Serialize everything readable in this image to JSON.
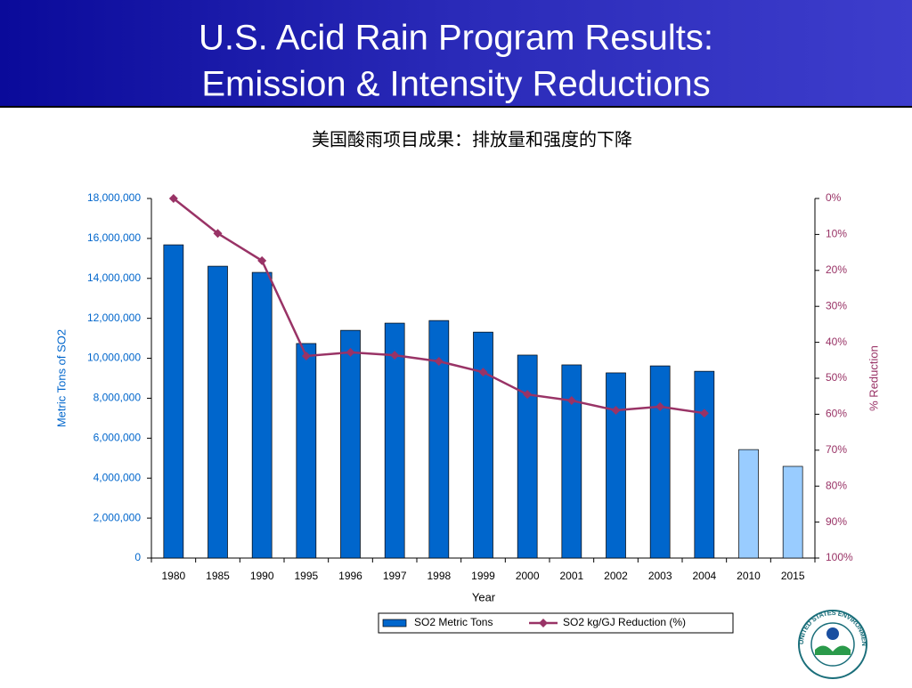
{
  "chart_data": {
    "type": "bar_line",
    "title": [
      "U.S. Acid Rain Program Results:",
      "Emission & Intensity Reductions"
    ],
    "subtitle": "美国酸雨项目成果：排放量和强度的下降",
    "x_label": "Year",
    "y_label": "Metric Tons of SO2",
    "y2_label": "% Reduction",
    "categories": [
      "1980",
      "1985",
      "1990",
      "1995",
      "1996",
      "1997",
      "1998",
      "1999",
      "2000",
      "2001",
      "2002",
      "2003",
      "2004",
      "2010",
      "2015"
    ],
    "series": [
      {
        "name": "SO2 Metric Tons",
        "type": "bar",
        "color": "#0066cc",
        "colors": [
          "#0066cc",
          "#0066cc",
          "#0066cc",
          "#0066cc",
          "#0066cc",
          "#0066cc",
          "#0066cc",
          "#0066cc",
          "#0066cc",
          "#0066cc",
          "#0066cc",
          "#0066cc",
          "#0066cc",
          "#99ccff",
          "#99ccff"
        ],
        "values": [
          15680000,
          14610000,
          14300000,
          10740000,
          11400000,
          11760000,
          11890000,
          11310000,
          10160000,
          9670000,
          9270000,
          9620000,
          9350000,
          5430000,
          4590000
        ]
      },
      {
        "name": "SO2 kg/GJ Reduction (%)",
        "type": "line",
        "axis": "y2",
        "color": "#993366",
        "values": [
          0,
          9.7,
          17.3,
          43.8,
          42.8,
          43.6,
          45.3,
          48.3,
          54.5,
          56.2,
          58.9,
          57.9,
          59.7,
          null,
          null
        ]
      }
    ],
    "ylim": [
      0,
      18000000
    ],
    "yticks": [
      0,
      {
        "value": 2000000,
        "label": "2,000,000"
      },
      {
        "value": 4000000,
        "label": "4,000,000"
      },
      {
        "value": 6000000,
        "label": "6,000,000"
      },
      {
        "value": 8000000,
        "label": "8,000,000"
      },
      {
        "value": 10000000,
        "label": "10,000,000"
      },
      {
        "value": 12000000,
        "label": "12,000,000"
      },
      {
        "value": 14000000,
        "label": "14,000,000"
      },
      {
        "value": 16000000,
        "label": "16,000,000"
      },
      {
        "value": 18000000,
        "label": "18,000,000"
      }
    ],
    "y2lim": [
      100,
      0
    ],
    "y2ticks": [
      {
        "value": 0,
        "label": "0%"
      },
      {
        "value": 10,
        "label": "10%"
      },
      {
        "value": 20,
        "label": "20%"
      },
      {
        "value": 30,
        "label": "30%"
      },
      {
        "value": 40,
        "label": "40%"
      },
      {
        "value": 50,
        "label": "50%"
      },
      {
        "value": 60,
        "label": "60%"
      },
      {
        "value": 70,
        "label": "70%"
      },
      {
        "value": 80,
        "label": "80%"
      },
      {
        "value": 90,
        "label": "90%"
      },
      {
        "value": 100,
        "label": "100%"
      }
    ],
    "y_tick_color": "#0066cc",
    "y2_tick_color": "#993366",
    "legend": "bottom",
    "grid": false,
    "logo_text": "UNITED STATES ENVIRONMENTAL PROTECTION AGENCY"
  }
}
